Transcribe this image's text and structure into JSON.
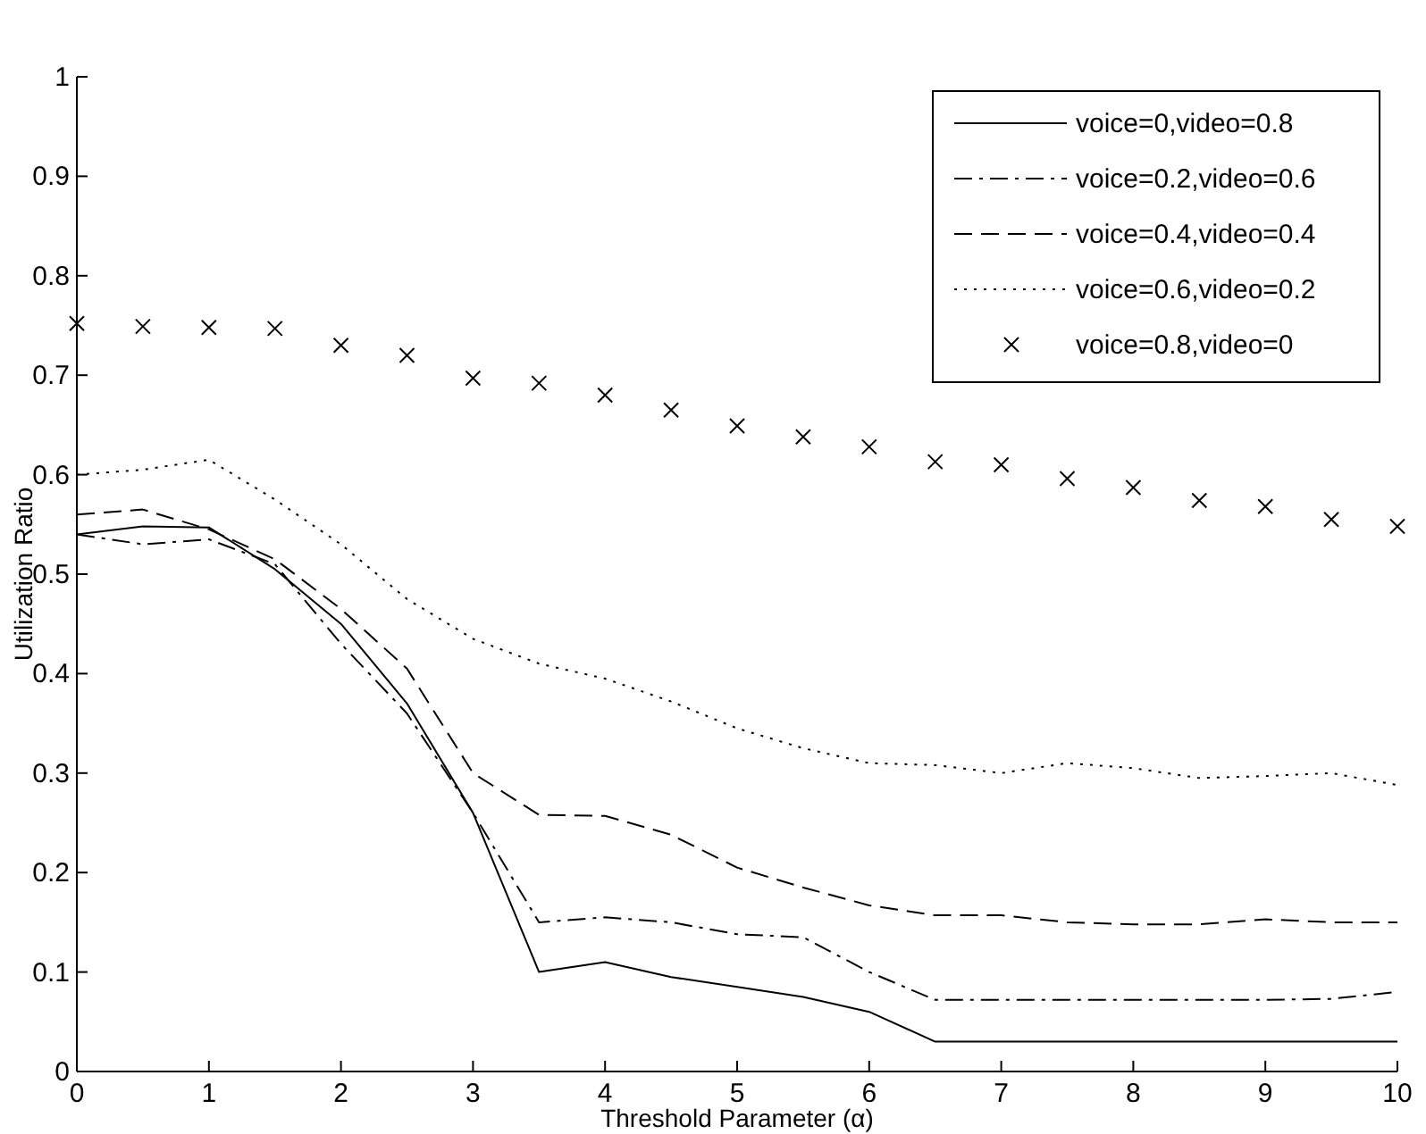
{
  "chart_data": {
    "type": "line",
    "xlabel": "Threshold Parameter (α)",
    "ylabel": "Utilization Ratio",
    "x": [
      0,
      0.5,
      1,
      1.5,
      2,
      2.5,
      3,
      3.5,
      4,
      4.5,
      5,
      5.5,
      6,
      6.5,
      7,
      7.5,
      8,
      8.5,
      9,
      9.5,
      10
    ],
    "xlim": [
      0,
      10
    ],
    "xticks": [
      0,
      1,
      2,
      3,
      4,
      5,
      6,
      7,
      8,
      9,
      10
    ],
    "ylim": [
      0,
      1
    ],
    "yticks": [
      0,
      0.1,
      0.2,
      0.3,
      0.4,
      0.5,
      0.6,
      0.7,
      0.8,
      0.9,
      1
    ],
    "grid": false,
    "legend": "top right",
    "series": [
      {
        "name": "voice=0,video=0.8",
        "color": "#000000",
        "line_style": "solid",
        "values": [
          0.54,
          0.548,
          0.547,
          0.505,
          0.45,
          0.37,
          0.26,
          0.1,
          0.11,
          0.095,
          0.085,
          0.075,
          0.06,
          0.03,
          0.03,
          0.03,
          0.03,
          0.03,
          0.03,
          0.03,
          0.03
        ]
      },
      {
        "name": "voice=0.2,video=0.6",
        "color": "#000000",
        "line_style": "dashdot",
        "values": [
          0.54,
          0.53,
          0.535,
          0.51,
          0.43,
          0.36,
          0.26,
          0.15,
          0.155,
          0.15,
          0.138,
          0.135,
          0.1,
          0.072,
          0.072,
          0.072,
          0.072,
          0.072,
          0.072,
          0.073,
          0.08
        ]
      },
      {
        "name": "voice=0.4,video=0.4",
        "color": "#000000",
        "line_style": "dashed",
        "values": [
          0.56,
          0.565,
          0.545,
          0.515,
          0.465,
          0.405,
          0.3,
          0.258,
          0.257,
          0.238,
          0.205,
          0.185,
          0.167,
          0.157,
          0.157,
          0.15,
          0.148,
          0.148,
          0.153,
          0.15,
          0.15
        ]
      },
      {
        "name": "voice=0.6,video=0.2",
        "color": "#000000",
        "line_style": "dotted",
        "values": [
          0.6,
          0.605,
          0.615,
          0.575,
          0.53,
          0.475,
          0.435,
          0.41,
          0.395,
          0.372,
          0.345,
          0.325,
          0.31,
          0.308,
          0.3,
          0.31,
          0.305,
          0.295,
          0.297,
          0.3,
          0.288
        ]
      },
      {
        "name": "voice=0.8,video=0",
        "color": "#000000",
        "type": "scatter",
        "marker": "cross",
        "values": [
          0.752,
          0.749,
          0.748,
          0.747,
          0.73,
          0.72,
          0.697,
          0.692,
          0.68,
          0.665,
          0.649,
          0.638,
          0.628,
          0.613,
          0.61,
          0.596,
          0.587,
          0.574,
          0.568,
          0.555,
          0.548
        ]
      }
    ]
  }
}
